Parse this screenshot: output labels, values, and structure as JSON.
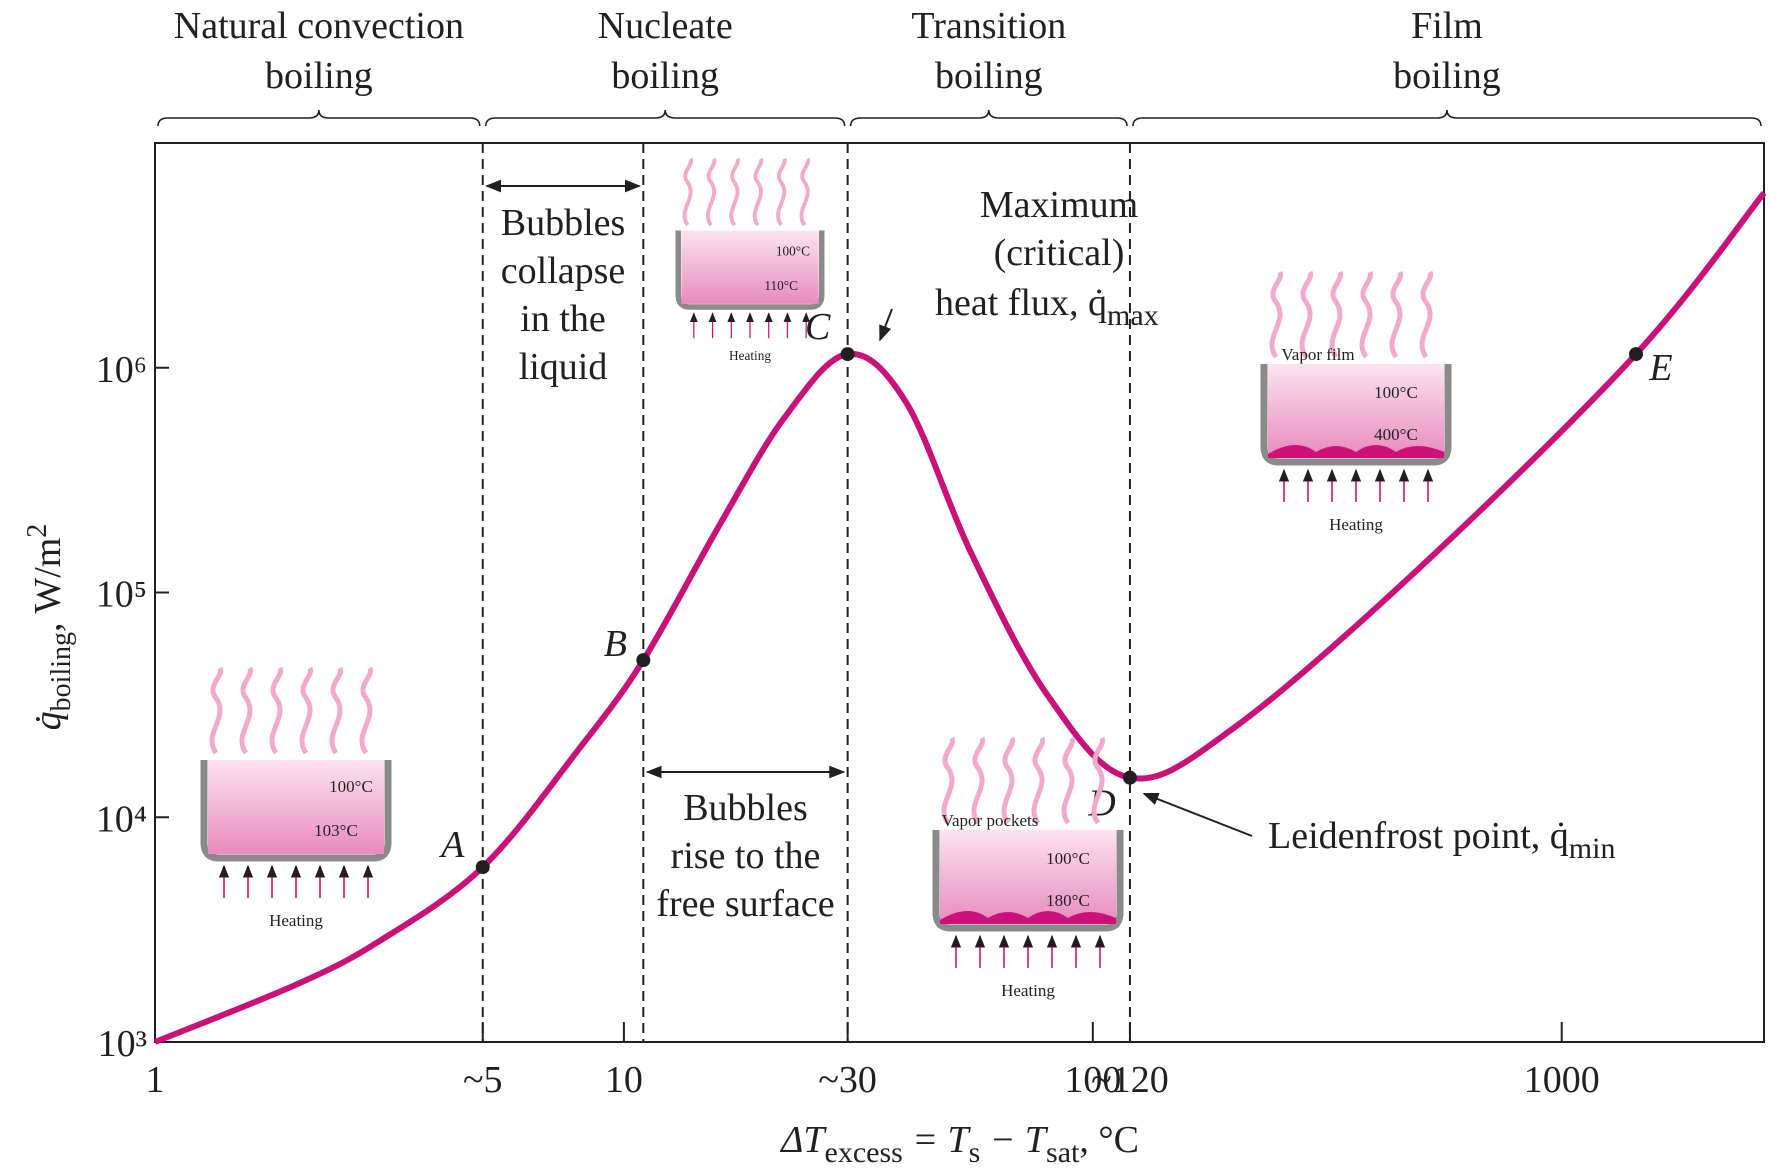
{
  "chart_data": {
    "type": "line",
    "xlabel": [
      "ΔT",
      "excess",
      " = T",
      "s",
      " − T",
      "sat",
      ", °C"
    ],
    "ylabel": [
      "q̇",
      "boiling",
      ", W/m",
      "2"
    ],
    "xscale": "log",
    "yscale": "log",
    "xlim": [
      1,
      2700
    ],
    "ylim": [
      1000,
      10000000
    ],
    "xticks": [
      1,
      {
        "value": 5,
        "label": "~5"
      },
      10,
      {
        "value": 30,
        "label": "~30"
      },
      100,
      {
        "value": 120,
        "label": "~120"
      },
      1000
    ],
    "yticks": [
      {
        "value": 1000,
        "label": "10³"
      },
      {
        "value": 10000,
        "label": "10⁴"
      },
      {
        "value": 100000,
        "label": "10⁵"
      },
      {
        "value": 1000000,
        "label": "10⁶"
      }
    ],
    "curve": {
      "color": "#c8127a",
      "x": [
        1,
        2,
        3,
        5,
        8,
        11,
        16,
        22,
        30,
        40,
        55,
        80,
        120,
        200,
        500,
        1440,
        2700
      ],
      "y": [
        1000,
        1800,
        2800,
        6000,
        20000,
        50000,
        200000,
        600000,
        1150000,
        700000,
        150000,
        35000,
        15000,
        25000,
        130000,
        1150000,
        6000000
      ]
    },
    "points": [
      {
        "label": "A",
        "x": 5,
        "y": 6000
      },
      {
        "label": "B",
        "x": 11,
        "y": 50000
      },
      {
        "label": "C",
        "x": 30,
        "y": 1150000
      },
      {
        "label": "D",
        "x": 120,
        "y": 15000
      },
      {
        "label": "E",
        "x": 1440,
        "y": 1150000
      }
    ],
    "regions": [
      {
        "label": [
          "Natural convection",
          "boiling"
        ],
        "x_range": [
          1,
          5
        ]
      },
      {
        "label": [
          "Nucleate",
          "boiling"
        ],
        "x_range": [
          5,
          30
        ]
      },
      {
        "label": [
          "Transition",
          "boiling"
        ],
        "x_range": [
          30,
          120
        ]
      },
      {
        "label": [
          "Film",
          "boiling"
        ],
        "x_range": [
          120,
          2700
        ]
      }
    ],
    "annotations": {
      "collapse": [
        "Bubbles",
        "collapse",
        "in the",
        "liquid"
      ],
      "rise": [
        "Bubbles",
        "rise to the",
        "free surface"
      ],
      "max": [
        "Maximum",
        "(critical)",
        "heat flux, q̇",
        "max"
      ],
      "min": [
        "Leidenfrost point, q̇",
        "min"
      ]
    },
    "insets": [
      {
        "labels": [
          "100°C",
          "103°C"
        ],
        "heating": "Heating"
      },
      {
        "labels": [
          "100°C",
          "110°C"
        ],
        "heating": "Heating"
      },
      {
        "labels": [
          "Vapor pockets",
          "100°C",
          "180°C"
        ],
        "heating": "Heating"
      },
      {
        "labels": [
          "Vapor film",
          "100°C",
          "400°C"
        ],
        "heating": "Heating"
      }
    ]
  }
}
